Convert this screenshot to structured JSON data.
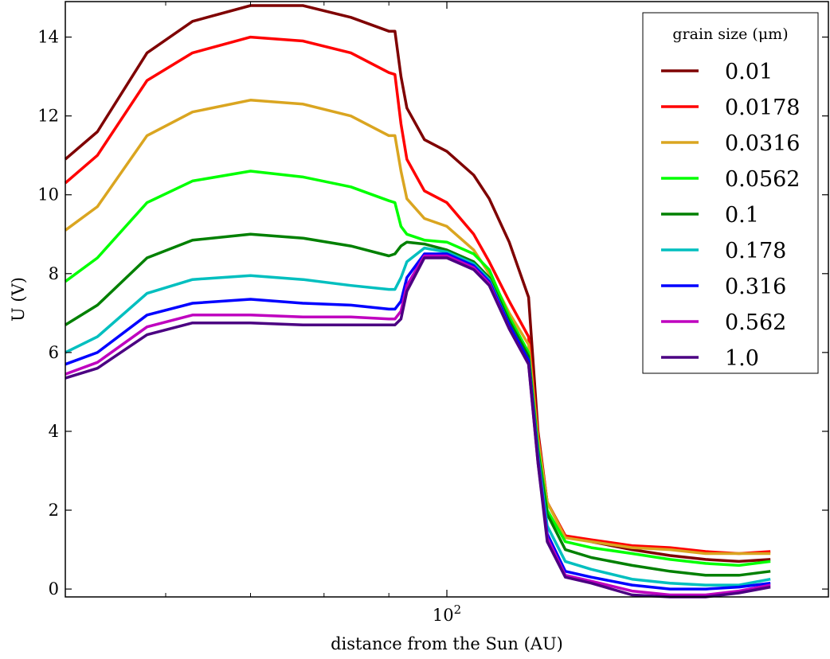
{
  "chart_data": {
    "type": "line",
    "title": "",
    "xlabel": "distance from the Sun (AU)",
    "ylabel": "U (V)",
    "xscale": "log",
    "xlim": [
      50,
      200
    ],
    "ylim": [
      -0.2,
      14.9
    ],
    "yticks": [
      0,
      2,
      4,
      6,
      8,
      10,
      12,
      14
    ],
    "xticks": [
      {
        "value": 100,
        "base": "10",
        "exp": "2"
      }
    ],
    "grid": false,
    "legend": {
      "title": "grain size (μm)",
      "position": "top-right"
    },
    "x": [
      50,
      53,
      58,
      63,
      70,
      77,
      84,
      90,
      91,
      92,
      93,
      96,
      100,
      105,
      108,
      112,
      116,
      118,
      120,
      124,
      130,
      140,
      150,
      160,
      170,
      180
    ],
    "series": [
      {
        "name": "0.01",
        "color": "#7f0000",
        "values": [
          10.9,
          11.6,
          13.6,
          14.4,
          14.8,
          14.8,
          14.5,
          14.15,
          14.15,
          13.0,
          12.2,
          11.4,
          11.1,
          10.5,
          9.9,
          8.8,
          7.4,
          4.0,
          2.2,
          1.35,
          1.2,
          1.0,
          0.85,
          0.75,
          0.7,
          0.75
        ]
      },
      {
        "name": "0.0178",
        "color": "#ff0000",
        "values": [
          10.3,
          11.0,
          12.9,
          13.6,
          14.0,
          13.9,
          13.6,
          13.1,
          13.05,
          11.8,
          10.9,
          10.1,
          9.8,
          9.0,
          8.3,
          7.3,
          6.4,
          3.9,
          2.2,
          1.35,
          1.25,
          1.1,
          1.05,
          0.95,
          0.9,
          0.95
        ]
      },
      {
        "name": "0.0316",
        "color": "#daa520",
        "values": [
          9.1,
          9.7,
          11.5,
          12.1,
          12.4,
          12.3,
          12.0,
          11.5,
          11.5,
          10.6,
          9.9,
          9.4,
          9.2,
          8.6,
          8.0,
          7.0,
          6.2,
          3.8,
          2.2,
          1.3,
          1.2,
          1.05,
          1.0,
          0.9,
          0.9,
          0.9
        ]
      },
      {
        "name": "0.0562",
        "color": "#00ff00",
        "values": [
          7.8,
          8.4,
          9.8,
          10.35,
          10.6,
          10.45,
          10.2,
          9.85,
          9.8,
          9.2,
          9.0,
          8.85,
          8.8,
          8.5,
          8.1,
          6.9,
          6.0,
          3.6,
          2.0,
          1.2,
          1.05,
          0.9,
          0.75,
          0.65,
          0.6,
          0.7
        ]
      },
      {
        "name": "0.1",
        "color": "#008000",
        "values": [
          6.7,
          7.2,
          8.4,
          8.85,
          9.0,
          8.9,
          8.7,
          8.45,
          8.5,
          8.7,
          8.8,
          8.75,
          8.6,
          8.3,
          7.9,
          6.8,
          5.9,
          3.5,
          1.9,
          1.0,
          0.8,
          0.6,
          0.45,
          0.35,
          0.35,
          0.45
        ]
      },
      {
        "name": "0.178",
        "color": "#00bfbf",
        "values": [
          6.0,
          6.4,
          7.5,
          7.85,
          7.95,
          7.85,
          7.7,
          7.6,
          7.6,
          7.9,
          8.3,
          8.65,
          8.55,
          8.25,
          7.85,
          6.7,
          5.8,
          3.4,
          1.6,
          0.7,
          0.5,
          0.25,
          0.15,
          0.1,
          0.1,
          0.25
        ]
      },
      {
        "name": "0.316",
        "color": "#0000ff",
        "values": [
          5.7,
          6.0,
          6.95,
          7.25,
          7.35,
          7.25,
          7.2,
          7.1,
          7.1,
          7.3,
          7.9,
          8.5,
          8.5,
          8.2,
          7.8,
          6.7,
          5.8,
          3.3,
          1.4,
          0.45,
          0.3,
          0.1,
          0.0,
          0.0,
          0.05,
          0.15
        ]
      },
      {
        "name": "0.562",
        "color": "#bf00bf",
        "values": [
          5.45,
          5.75,
          6.65,
          6.95,
          6.95,
          6.9,
          6.9,
          6.85,
          6.85,
          7.05,
          7.7,
          8.45,
          8.45,
          8.15,
          7.75,
          6.6,
          5.7,
          3.2,
          1.3,
          0.35,
          0.2,
          -0.05,
          -0.15,
          -0.15,
          -0.05,
          0.1
        ]
      },
      {
        "name": "1.0",
        "color": "#4b0082",
        "values": [
          5.35,
          5.6,
          6.45,
          6.75,
          6.75,
          6.7,
          6.7,
          6.7,
          6.7,
          6.85,
          7.55,
          8.4,
          8.4,
          8.1,
          7.7,
          6.6,
          5.7,
          3.2,
          1.2,
          0.3,
          0.15,
          -0.15,
          -0.2,
          -0.2,
          -0.1,
          0.05
        ]
      }
    ]
  }
}
